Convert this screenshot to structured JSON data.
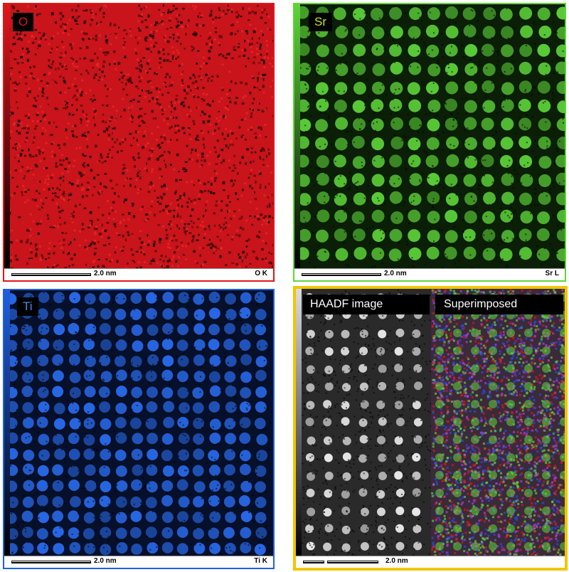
{
  "panels": {
    "o": {
      "label": "O",
      "scale": "2.0 nm",
      "element_line": "O K",
      "color": "#e0161a"
    },
    "sr": {
      "label": "Sr",
      "scale": "2.0 nm",
      "element_line": "Sr L",
      "color": "#5ed43a"
    },
    "ti": {
      "label": "Ti",
      "scale": "2.0 nm",
      "element_line": "Ti K",
      "color": "#1f5fe0"
    },
    "combo": {
      "haadf_label": "HAADF image",
      "super_label": "Superimposed",
      "scale": "2.0 nm",
      "border_color": "#f2c500"
    }
  }
}
